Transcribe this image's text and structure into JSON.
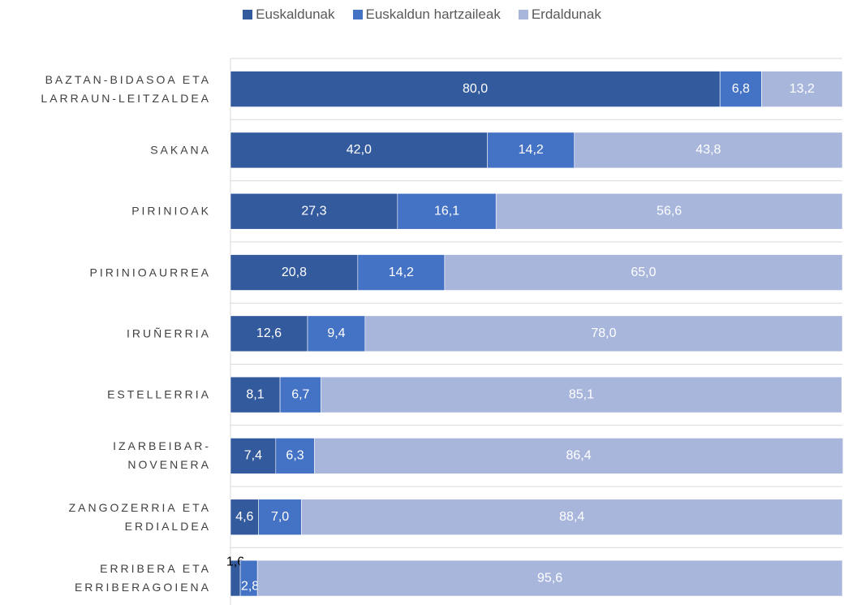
{
  "chart_data": {
    "type": "stacked-barh",
    "categories": [
      "BAZTAN-BIDASOA ETA\nLARRAUN-LEITZALDEA",
      "SAKANA",
      "PIRINIOAK",
      "PIRINIOAURREA",
      "IRUÑERRIA",
      "ESTELLERRIA",
      "IZARBEIBAR-\nNOVENERA",
      "ZANGOZERRIA ETA\nERDIALDEA",
      "ERRIBERA ETA\nERRIBERAGOIENA"
    ],
    "series": [
      {
        "name": "Euskaldunak",
        "color": "#345a9e",
        "values": [
          80.0,
          42.0,
          27.3,
          20.8,
          12.6,
          8.1,
          7.4,
          4.6,
          1.6
        ],
        "value_labels": [
          "80,0",
          "42,0",
          "27,3",
          "20,8",
          "12,6",
          "8,1",
          "7,4",
          "4,6",
          "1,6"
        ]
      },
      {
        "name": "Euskaldun hartzaileak",
        "color": "#4472c4",
        "values": [
          6.8,
          14.2,
          16.1,
          14.2,
          9.4,
          6.7,
          6.3,
          7.0,
          2.8
        ],
        "value_labels": [
          "6,8",
          "14,2",
          "16,1",
          "14,2",
          "9,4",
          "6,7",
          "6,3",
          "7,0",
          "2,8"
        ]
      },
      {
        "name": "Erdaldunak",
        "color": "#a9b6dc",
        "values": [
          13.2,
          43.8,
          56.6,
          65.0,
          78.0,
          85.1,
          86.4,
          88.4,
          95.6
        ],
        "value_labels": [
          "13,2",
          "43,8",
          "56,6",
          "65,0",
          "78,0",
          "85,1",
          "86,4",
          "88,4",
          "95,6"
        ]
      }
    ],
    "xlim": [
      0,
      100
    ]
  }
}
